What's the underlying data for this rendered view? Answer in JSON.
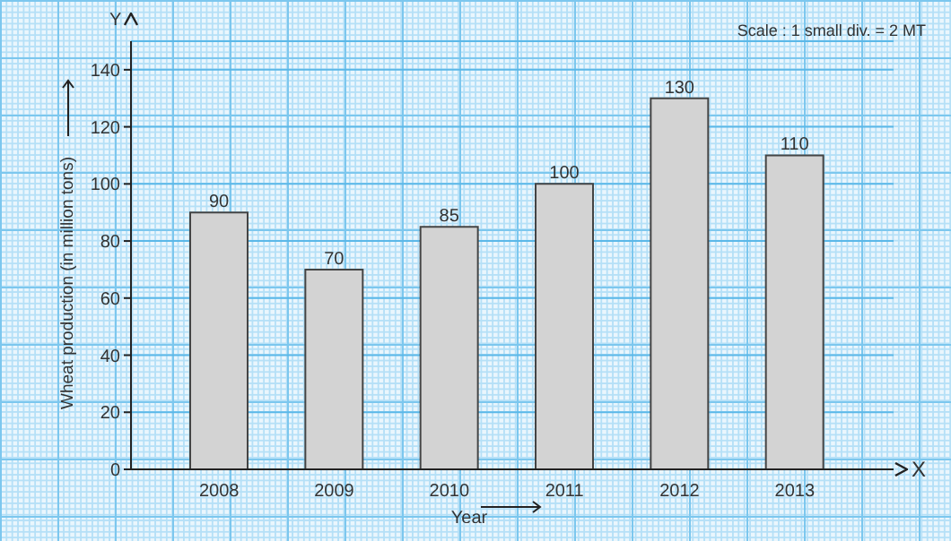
{
  "chart_data": {
    "type": "bar",
    "xlabel": "Year",
    "ylabel": "Wheat production (in million tons)",
    "categories": [
      "2008",
      "2009",
      "2010",
      "2011",
      "2012",
      "2013"
    ],
    "values": [
      90,
      70,
      85,
      100,
      130,
      110
    ],
    "color": "#d3d3d3",
    "ylim": [
      0,
      150
    ],
    "yticks": [
      0,
      20,
      40,
      60,
      80,
      100,
      120,
      140
    ],
    "grid": "y",
    "data_labels": true,
    "annotations": [
      "Scale : 1 small div. = 2 MT",
      "Y",
      "X"
    ]
  }
}
